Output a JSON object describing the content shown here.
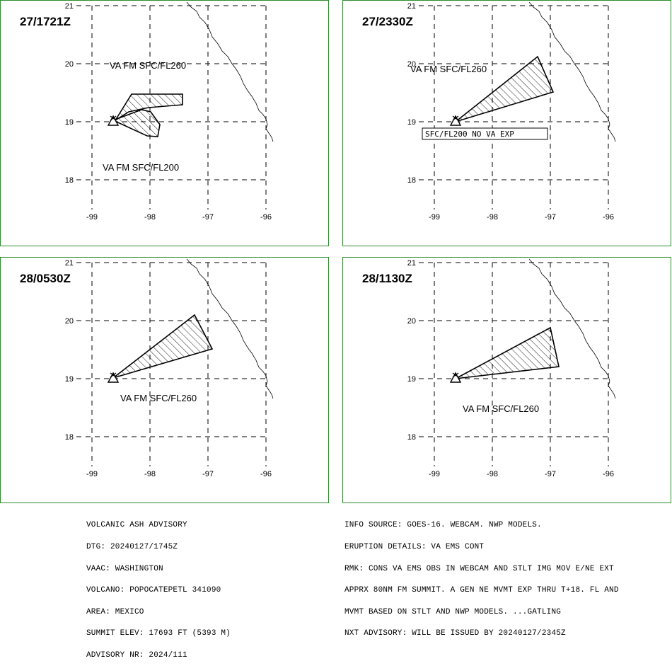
{
  "colors": {
    "frame": "#2e8b2e",
    "ink": "#000000",
    "background": "#ffffff"
  },
  "map": {
    "lat_ticks": [
      "21",
      "20",
      "19",
      "18"
    ],
    "lon_ticks": [
      "-99",
      "-98",
      "-97",
      "-96"
    ],
    "volcano_icon": "volcano-triangle-icon"
  },
  "panels": [
    {
      "time": "27/1721Z",
      "label_a": "VA FM SFC/FL260",
      "label_b": "VA FM SFC/FL200"
    },
    {
      "time": "27/2330Z",
      "label_a": "VA FM SFC/FL260",
      "boxed_note": "SFC/FL200 NO VA EXP"
    },
    {
      "time": "28/0530Z",
      "label_a": "VA FM SFC/FL260"
    },
    {
      "time": "28/1130Z",
      "label_a": "VA FM SFC/FL260"
    }
  ],
  "advisory": {
    "left": [
      "VOLCANIC ASH ADVISORY",
      "DTG: 20240127/1745Z",
      "VAAC: WASHINGTON",
      "VOLCANO: POPOCATEPETL 341090",
      "AREA: MEXICO",
      "SUMMIT ELEV: 17693 FT (5393 M)",
      "ADVISORY NR: 2024/111"
    ],
    "right": [
      "INFO SOURCE: GOES-16. WEBCAM. NWP MODELS.",
      "ERUPTION DETAILS: VA EMS CONT",
      "RMK: CONS VA EMS OBS IN WEBCAM AND STLT IMG MOV E/NE EXT",
      "APPRX 80NM FM SUMMIT. A GEN NE MVMT EXP THRU T+18. FL AND",
      "MVMT BASED ON STLT AND NWP MODELS. ...GATLING",
      "NXT ADVISORY: WILL BE ISSUED BY 20240127/2345Z"
    ]
  }
}
